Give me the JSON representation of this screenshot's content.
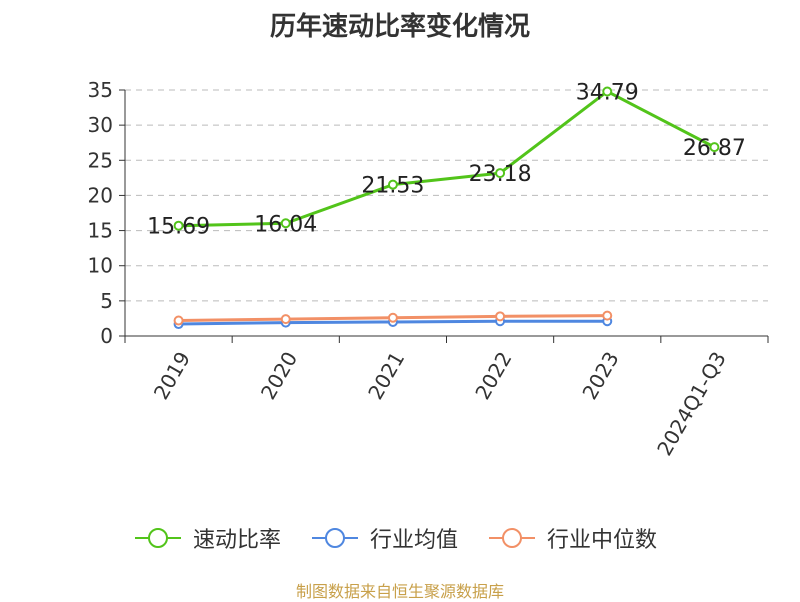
{
  "title": "历年速动比率变化情况",
  "source_note": "制图数据来自恒生聚源数据库",
  "colors": {
    "quick_ratio": "#52c41a",
    "industry_avg": "#4f87e0",
    "industry_median": "#f29066",
    "axis": "#333333",
    "grid": "#bbbbbb"
  },
  "chart_data": {
    "type": "line",
    "title": "历年速动比率变化情况",
    "xlabel": "",
    "ylabel": "",
    "categories": [
      "2019",
      "2020",
      "2021",
      "2022",
      "2023",
      "2024Q1-Q3"
    ],
    "ylim": [
      0,
      35
    ],
    "yticks": [
      0,
      5,
      10,
      15,
      20,
      25,
      30,
      35
    ],
    "grid": true,
    "legend_position": "bottom",
    "series": [
      {
        "name": "速动比率",
        "color_key": "quick_ratio",
        "values": [
          15.69,
          16.04,
          21.53,
          23.18,
          34.79,
          26.87
        ],
        "labels": [
          "15.69",
          "16.04",
          "21.53",
          "23.18",
          "34.79",
          "26.87"
        ]
      },
      {
        "name": "行业均值",
        "color_key": "industry_avg",
        "values": [
          1.7,
          1.9,
          2.0,
          2.1,
          2.1,
          null
        ]
      },
      {
        "name": "行业中位数",
        "color_key": "industry_median",
        "values": [
          2.2,
          2.4,
          2.6,
          2.8,
          2.9,
          null
        ]
      }
    ]
  }
}
